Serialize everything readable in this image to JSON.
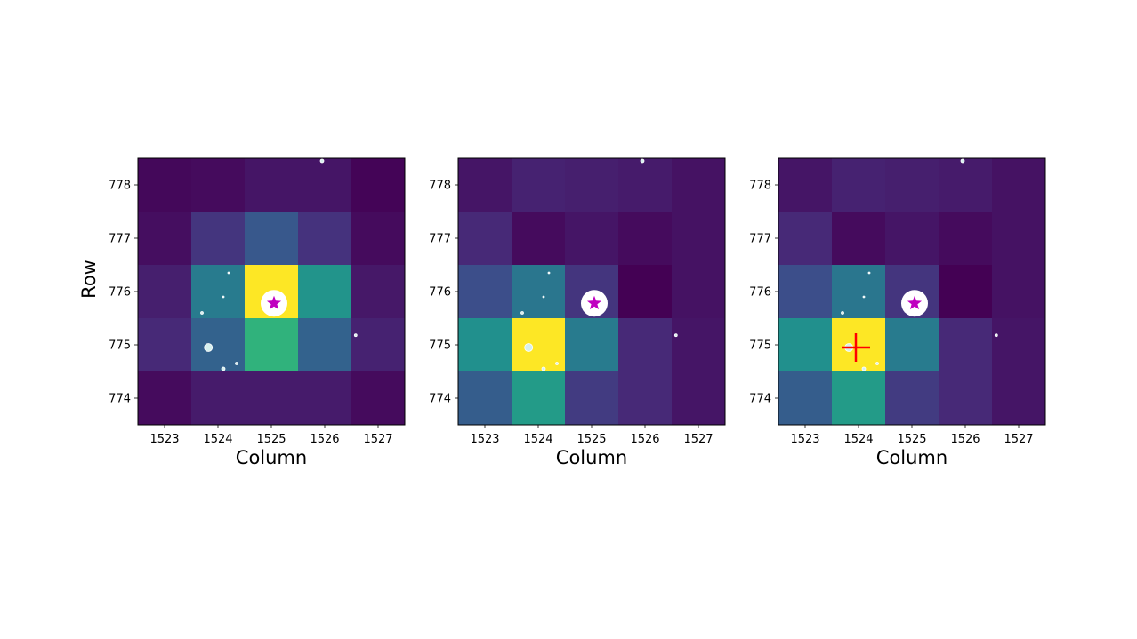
{
  "chart_data": [
    {
      "type": "heatmap",
      "xlabel": "Column",
      "ylabel": "Row",
      "x_ticks": [
        1523,
        1524,
        1525,
        1526,
        1527
      ],
      "y_ticks": [
        774,
        775,
        776,
        777,
        778
      ],
      "columns": [
        1523,
        1524,
        1525,
        1526,
        1527
      ],
      "rows": [
        778,
        777,
        776,
        775,
        774
      ],
      "colormap": "viridis",
      "values": [
        [
          0.02,
          0.03,
          0.06,
          0.06,
          0.01
        ],
        [
          0.04,
          0.16,
          0.28,
          0.15,
          0.03
        ],
        [
          0.09,
          0.42,
          1.0,
          0.52,
          0.07
        ],
        [
          0.12,
          0.32,
          0.65,
          0.32,
          0.1
        ],
        [
          0.03,
          0.08,
          0.08,
          0.08,
          0.03
        ]
      ],
      "target": {
        "type": "star",
        "column": 1525.05,
        "row": 775.78,
        "color": "#c000c0"
      },
      "neighbor_sources": [
        {
          "column": 1525.95,
          "row": 778.45,
          "size": 2
        },
        {
          "column": 1524.2,
          "row": 776.35,
          "size": 1
        },
        {
          "column": 1524.1,
          "row": 775.9,
          "size": 1
        },
        {
          "column": 1523.7,
          "row": 775.6,
          "size": 1.5
        },
        {
          "column": 1523.82,
          "row": 774.95,
          "size": 4.5
        },
        {
          "column": 1524.35,
          "row": 774.65,
          "size": 1.5
        },
        {
          "column": 1524.1,
          "row": 774.55,
          "size": 2
        },
        {
          "column": 1526.58,
          "row": 775.18,
          "size": 1.5
        }
      ]
    },
    {
      "type": "heatmap",
      "xlabel": "Column",
      "ylabel": "",
      "x_ticks": [
        1523,
        1524,
        1525,
        1526,
        1527
      ],
      "y_ticks": [
        774,
        775,
        776,
        777,
        778
      ],
      "columns": [
        1523,
        1524,
        1525,
        1526,
        1527
      ],
      "rows": [
        778,
        777,
        776,
        775,
        774
      ],
      "colormap": "viridis",
      "values": [
        [
          0.06,
          0.1,
          0.09,
          0.08,
          0.05
        ],
        [
          0.12,
          0.03,
          0.06,
          0.03,
          0.05
        ],
        [
          0.24,
          0.4,
          0.16,
          0.0,
          0.05
        ],
        [
          0.5,
          1.0,
          0.42,
          0.12,
          0.06
        ],
        [
          0.3,
          0.55,
          0.18,
          0.12,
          0.06
        ]
      ],
      "target": {
        "type": "star",
        "column": 1525.05,
        "row": 775.78,
        "color": "#c000c0"
      },
      "neighbor_sources": [
        {
          "column": 1525.95,
          "row": 778.45,
          "size": 2
        },
        {
          "column": 1524.2,
          "row": 776.35,
          "size": 1
        },
        {
          "column": 1524.1,
          "row": 775.9,
          "size": 1
        },
        {
          "column": 1523.7,
          "row": 775.6,
          "size": 1.5
        },
        {
          "column": 1523.82,
          "row": 774.95,
          "size": 4.5
        },
        {
          "column": 1524.35,
          "row": 774.65,
          "size": 1.5
        },
        {
          "column": 1524.1,
          "row": 774.55,
          "size": 2
        },
        {
          "column": 1526.58,
          "row": 775.18,
          "size": 1.5
        }
      ]
    },
    {
      "type": "heatmap",
      "xlabel": "Column",
      "ylabel": "",
      "x_ticks": [
        1523,
        1524,
        1525,
        1526,
        1527
      ],
      "y_ticks": [
        774,
        775,
        776,
        777,
        778
      ],
      "columns": [
        1523,
        1524,
        1525,
        1526,
        1527
      ],
      "rows": [
        778,
        777,
        776,
        775,
        774
      ],
      "colormap": "viridis",
      "values": [
        [
          0.06,
          0.1,
          0.09,
          0.08,
          0.05
        ],
        [
          0.12,
          0.03,
          0.06,
          0.03,
          0.05
        ],
        [
          0.24,
          0.4,
          0.16,
          0.0,
          0.05
        ],
        [
          0.5,
          1.0,
          0.42,
          0.12,
          0.06
        ],
        [
          0.3,
          0.55,
          0.18,
          0.12,
          0.06
        ]
      ],
      "target": {
        "type": "star",
        "column": 1525.05,
        "row": 775.78,
        "color": "#c000c0"
      },
      "centroid": {
        "type": "cross",
        "column": 1523.95,
        "row": 774.95,
        "color": "#ff0000"
      },
      "neighbor_sources": [
        {
          "column": 1525.95,
          "row": 778.45,
          "size": 2
        },
        {
          "column": 1524.2,
          "row": 776.35,
          "size": 1
        },
        {
          "column": 1524.1,
          "row": 775.9,
          "size": 1
        },
        {
          "column": 1523.7,
          "row": 775.6,
          "size": 1.5
        },
        {
          "column": 1523.82,
          "row": 774.95,
          "size": 4.5
        },
        {
          "column": 1524.35,
          "row": 774.65,
          "size": 1.5
        },
        {
          "column": 1524.1,
          "row": 774.55,
          "size": 2
        },
        {
          "column": 1526.58,
          "row": 775.18,
          "size": 1.5
        }
      ]
    }
  ]
}
